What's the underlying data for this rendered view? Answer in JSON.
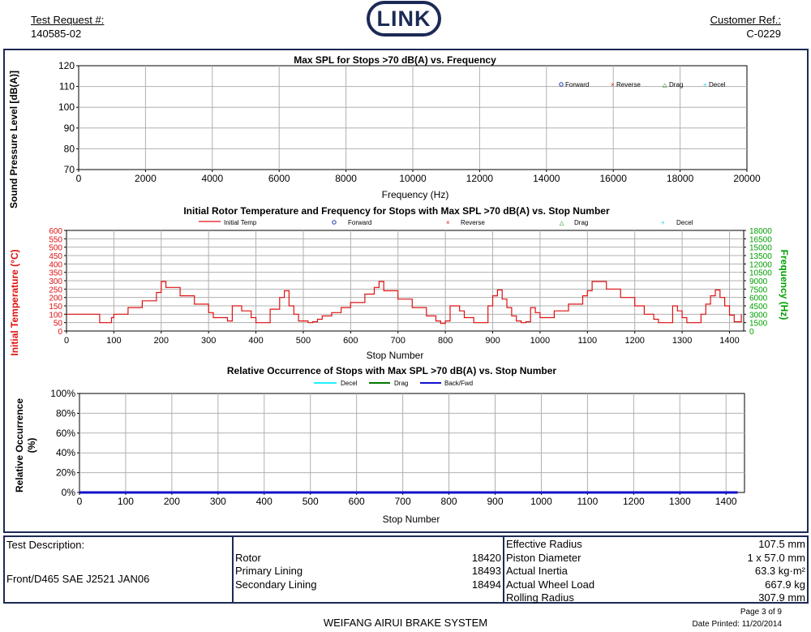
{
  "header": {
    "test_request_label": "Test Request #:",
    "test_request_value": "140585-02",
    "logo_text": "LINK",
    "customer_ref_label": "Customer Ref.:",
    "customer_ref_value": "C-0229"
  },
  "colors": {
    "frame": "#1c2a55",
    "temp": "#e01010",
    "freq": "#00a000",
    "fwd": "#1a3aa8",
    "decel": "#22ccee",
    "drag": "#007a00",
    "backfwd": "#1010cc"
  },
  "chart_data": [
    {
      "type": "scatter",
      "title": "Max SPL for Stops >70 dB(A) vs. Frequency",
      "xlabel": "Frequency (Hz)",
      "ylabel": "Sound Pressure Level [dB(A)]",
      "xlim": [
        0,
        20000
      ],
      "ylim": [
        70,
        120
      ],
      "x_ticks": [
        "0",
        "2000",
        "4000",
        "6000",
        "8000",
        "10000",
        "12000",
        "14000",
        "16000",
        "18000",
        "20000"
      ],
      "y_ticks": [
        "70",
        "80",
        "90",
        "100",
        "110",
        "120"
      ],
      "grid": true,
      "legend_position": "top-right",
      "series": [
        {
          "name": "Forward",
          "marker": "circle",
          "points": []
        },
        {
          "name": "Reverse",
          "marker": "x",
          "points": []
        },
        {
          "name": "Drag",
          "marker": "triangle",
          "points": []
        },
        {
          "name": "Decel",
          "marker": "plus",
          "points": []
        }
      ]
    },
    {
      "type": "line",
      "title": "Initial Rotor Temperature and Frequency for Stops with Max SPL >70 dB(A) vs. Stop Number",
      "xlabel": "Stop Number",
      "ylabel": "Initial Temperature (°C)",
      "y2label": "Frequency (Hz)",
      "xlim": [
        0,
        1430
      ],
      "ylim": [
        0,
        600
      ],
      "y2lim": [
        0,
        18000
      ],
      "x_ticks": [
        "0",
        "100",
        "200",
        "300",
        "400",
        "500",
        "600",
        "700",
        "800",
        "900",
        "1000",
        "1100",
        "1200",
        "1300",
        "1400"
      ],
      "y_ticks": [
        "0",
        "50",
        "100",
        "150",
        "200",
        "250",
        "300",
        "350",
        "400",
        "450",
        "500",
        "550",
        "600"
      ],
      "y2_ticks": [
        "0",
        "1500",
        "3000",
        "4500",
        "6000",
        "7500",
        "9000",
        "10500",
        "12000",
        "13500",
        "15000",
        "16500",
        "18000"
      ],
      "grid": true,
      "legend_position": "top",
      "legend": [
        "Initial Temp",
        "Forward",
        "Reverse",
        "Drag",
        "Decel"
      ],
      "series": [
        {
          "name": "Initial Temp",
          "axis": "left",
          "x": [
            0,
            68,
            70,
            95,
            100,
            130,
            160,
            190,
            200,
            210,
            240,
            270,
            300,
            310,
            340,
            350,
            370,
            390,
            400,
            410,
            430,
            450,
            460,
            470,
            480,
            490,
            500,
            510,
            520,
            530,
            540,
            560,
            580,
            600,
            630,
            650,
            660,
            670,
            700,
            730,
            760,
            780,
            790,
            800,
            810,
            830,
            840,
            860,
            880,
            890,
            900,
            910,
            920,
            930,
            940,
            950,
            960,
            970,
            980,
            990,
            1000,
            1030,
            1060,
            1090,
            1100,
            1110,
            1140,
            1170,
            1200,
            1220,
            1240,
            1250,
            1260,
            1280,
            1290,
            1300,
            1310,
            1330,
            1340,
            1350,
            1360,
            1370,
            1380,
            1390,
            1400,
            1410,
            1420,
            1425
          ],
          "y": [
            100,
            100,
            50,
            80,
            100,
            140,
            180,
            230,
            295,
            260,
            210,
            160,
            110,
            80,
            60,
            150,
            120,
            80,
            50,
            50,
            130,
            200,
            240,
            150,
            100,
            60,
            60,
            50,
            55,
            70,
            90,
            110,
            140,
            170,
            220,
            260,
            295,
            240,
            190,
            140,
            90,
            60,
            45,
            60,
            150,
            120,
            80,
            50,
            50,
            150,
            210,
            245,
            190,
            140,
            90,
            60,
            50,
            55,
            140,
            110,
            80,
            120,
            160,
            210,
            240,
            295,
            250,
            200,
            150,
            100,
            70,
            50,
            50,
            150,
            120,
            80,
            50,
            50,
            100,
            160,
            210,
            245,
            200,
            150,
            95,
            55,
            55,
            100
          ]
        },
        {
          "name": "Forward",
          "axis": "right",
          "points": []
        },
        {
          "name": "Reverse",
          "axis": "right",
          "points": []
        },
        {
          "name": "Drag",
          "axis": "right",
          "points": []
        },
        {
          "name": "Decel",
          "axis": "right",
          "points": []
        }
      ]
    },
    {
      "type": "area",
      "title": "Relative Occurrence of Stops with Max SPL >70 dB(A) vs. Stop Number",
      "xlabel": "Stop Number",
      "ylabel": "Relative Occurrence (%)",
      "xlim": [
        0,
        1440
      ],
      "ylim": [
        0,
        100
      ],
      "x_ticks": [
        "0",
        "100",
        "200",
        "300",
        "400",
        "500",
        "600",
        "700",
        "800",
        "900",
        "1000",
        "1100",
        "1200",
        "1300",
        "1400"
      ],
      "y_ticks": [
        "0%",
        "20%",
        "40%",
        "60%",
        "80%",
        "100%"
      ],
      "grid": true,
      "legend_position": "top",
      "series": [
        {
          "name": "Decel",
          "x": [
            0,
            1425
          ],
          "y": [
            0,
            0
          ]
        },
        {
          "name": "Drag",
          "x": [
            0,
            1425
          ],
          "y": [
            0,
            0
          ]
        },
        {
          "name": "Back/Fwd",
          "x": [
            0,
            1425
          ],
          "y": [
            0,
            0
          ]
        }
      ]
    }
  ],
  "info": {
    "test_description_label": "Test Description:",
    "test_description_value": "Front/D465 SAE J2521 JAN06",
    "components": [
      {
        "label": "Rotor",
        "value": "18420"
      },
      {
        "label": "Primary Lining",
        "value": "18493"
      },
      {
        "label": "Secondary Lining",
        "value": "18494"
      }
    ],
    "specs": [
      {
        "label": "Effective Radius",
        "value": "107.5 mm"
      },
      {
        "label": "Piston Diameter",
        "value": "1 x 57.0 mm"
      },
      {
        "label": "Actual Inertia",
        "value": "63.3 kg·m²"
      },
      {
        "label": "Actual Wheel Load",
        "value": "667.9 kg"
      },
      {
        "label": "Rolling Radius",
        "value": "307.9 mm"
      }
    ]
  },
  "footer": {
    "company": "WEIFANG AIRUI BRAKE SYSTEM",
    "page": "Page 3 of 9",
    "date_printed": "Date Printed: 11/20/2014"
  }
}
